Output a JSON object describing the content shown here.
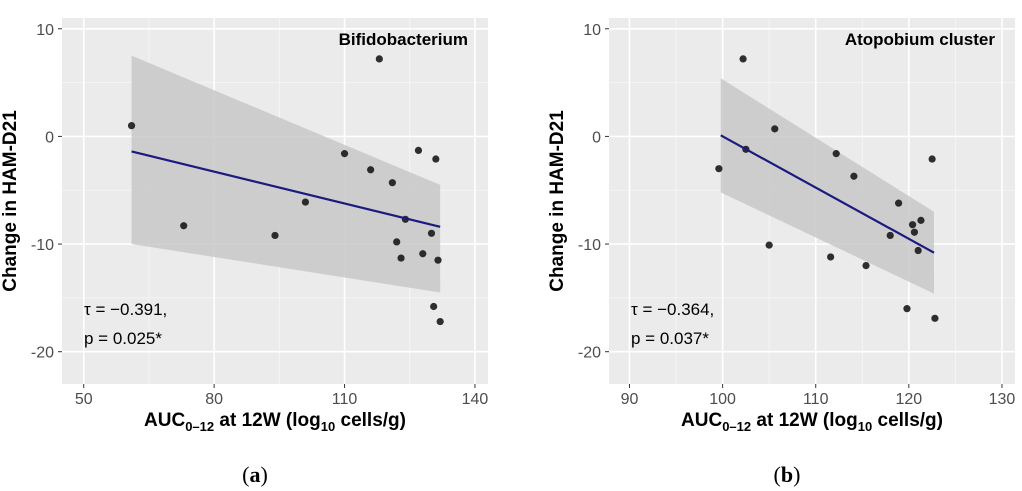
{
  "chart_data": [
    {
      "type": "scatter",
      "title": "Bifidobacterium",
      "panel_label": "a",
      "xlabel": {
        "main": "AUC",
        "sub": "0–12",
        "mid": " at 12W (log",
        "sub2": "10",
        "end": " cells/g)"
      },
      "ylabel": "Change in HAM-D21",
      "xlim": [
        45,
        143
      ],
      "ylim": [
        -23,
        11
      ],
      "xticks": [
        50,
        80,
        110,
        140
      ],
      "yticks": [
        10,
        0,
        -10,
        -20
      ],
      "grid": true,
      "points": [
        [
          61,
          1
        ],
        [
          73,
          -8.3
        ],
        [
          94,
          -9.2
        ],
        [
          101,
          -6.1
        ],
        [
          110,
          -1.6
        ],
        [
          116,
          -3.1
        ],
        [
          118,
          7.2
        ],
        [
          121,
          -4.3
        ],
        [
          122,
          -9.8
        ],
        [
          123,
          -11.3
        ],
        [
          124,
          -7.7
        ],
        [
          127,
          -1.3
        ],
        [
          128,
          -10.9
        ],
        [
          130,
          -9
        ],
        [
          130.5,
          -15.8
        ],
        [
          131,
          -2.1
        ],
        [
          131.5,
          -11.5
        ],
        [
          132,
          -17.2
        ]
      ],
      "fit_line": {
        "x": [
          61,
          132
        ],
        "y": [
          -1.4,
          -8.4
        ],
        "color": "#1a1a80"
      },
      "confidence_band": {
        "x": [
          61,
          132
        ],
        "upper": [
          7.5,
          -4.5
        ],
        "lower": [
          -10,
          -14.5
        ],
        "color": "#c8c8c8"
      },
      "annotation": {
        "tau": "τ = −0.391,",
        "p": "p = 0.025*"
      }
    },
    {
      "type": "scatter",
      "title": "Atopobium cluster",
      "panel_label": "b",
      "xlabel": {
        "main": "AUC",
        "sub": "0–12",
        "mid": " at 12W (log",
        "sub2": "10",
        "end": " cells/g)"
      },
      "ylabel": "Change in HAM-D21",
      "xlim": [
        87.8,
        131.4
      ],
      "ylim": [
        -23,
        11
      ],
      "xticks": [
        90,
        100,
        110,
        120,
        130
      ],
      "yticks": [
        10,
        0,
        -10,
        -20
      ],
      "grid": true,
      "points": [
        [
          99.6,
          -3
        ],
        [
          102.2,
          7.2
        ],
        [
          102.5,
          -1.2
        ],
        [
          105,
          -10.1
        ],
        [
          105.6,
          0.7
        ],
        [
          111.6,
          -11.2
        ],
        [
          112.2,
          -1.6
        ],
        [
          114.1,
          -3.7
        ],
        [
          115.4,
          -12
        ],
        [
          118,
          -9.2
        ],
        [
          118.9,
          -6.2
        ],
        [
          119.8,
          -16
        ],
        [
          120.4,
          -8.2
        ],
        [
          120.6,
          -8.9
        ],
        [
          121,
          -10.6
        ],
        [
          121.3,
          -7.8
        ],
        [
          122.5,
          -2.1
        ],
        [
          122.8,
          -16.9
        ]
      ],
      "fit_line": {
        "x": [
          99.8,
          122.7
        ],
        "y": [
          0.1,
          -10.8
        ],
        "color": "#1a1a80"
      },
      "confidence_band": {
        "x": [
          99.8,
          122.7
        ],
        "upper": [
          5.4,
          -7
        ],
        "lower": [
          -5.2,
          -14.6
        ],
        "color": "#c8c8c8"
      },
      "annotation": {
        "tau": "τ = −0.364,",
        "p": "p = 0.037*"
      }
    }
  ]
}
